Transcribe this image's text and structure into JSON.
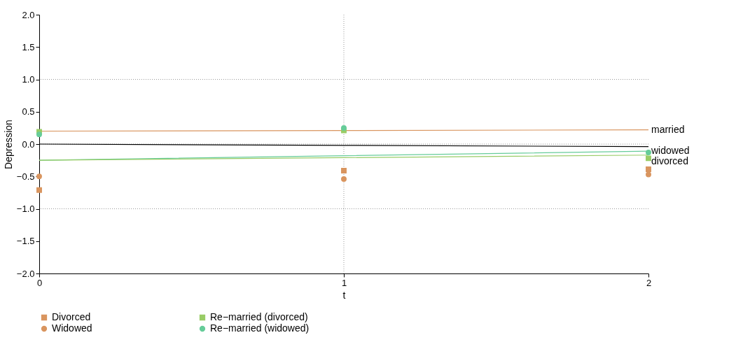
{
  "chart_data": {
    "type": "scatter",
    "xlabel": "t",
    "ylabel": "Depression",
    "x": [
      0,
      1,
      2
    ],
    "xlim": [
      0,
      2
    ],
    "xticks": [
      0,
      1,
      2
    ],
    "ylim": [
      -2,
      2
    ],
    "yticks": [
      {
        "value": -2,
        "label": "−2.0"
      },
      {
        "value": -1.5,
        "label": "−1.5"
      },
      {
        "value": -1,
        "label": "−1.0"
      },
      {
        "value": -0.5,
        "label": "−0.5"
      },
      {
        "value": 0,
        "label": "0.0"
      },
      {
        "value": 0.5,
        "label": "0.5"
      },
      {
        "value": 1,
        "label": "1.0"
      },
      {
        "value": 1.5,
        "label": "1.5"
      },
      {
        "value": 2,
        "label": "2.0"
      }
    ],
    "series": [
      {
        "name": "Divorced",
        "color": "#d9955f",
        "marker": "square",
        "values": [
          -0.71,
          -0.41,
          -0.39
        ]
      },
      {
        "name": "Widowed",
        "color": "#d9955f",
        "marker": "circle",
        "values": [
          -0.5,
          -0.54,
          -0.47
        ]
      },
      {
        "name": "Re−married (divorced)",
        "color": "#99cc66",
        "marker": "square",
        "values": [
          0.19,
          0.21,
          -0.22
        ]
      },
      {
        "name": "Re−married (widowed)",
        "color": "#66cc99",
        "marker": "circle",
        "values": [
          0.15,
          0.25,
          -0.13
        ]
      },
      {
        "name": "married",
        "type": "line",
        "color": "#d9955f",
        "values": [
          0.2,
          0.21,
          0.22
        ]
      },
      {
        "type": "line",
        "color": "#000000",
        "values": [
          0.0,
          -0.02,
          -0.04
        ]
      },
      {
        "name": "widowed",
        "type": "line",
        "color": "#66cc99",
        "values": [
          -0.25,
          -0.18,
          -0.11
        ]
      },
      {
        "name": "divorced",
        "type": "line",
        "color": "#99cc66",
        "values": [
          -0.25,
          -0.21,
          -0.17
        ]
      }
    ],
    "ref_lines": [
      {
        "axis": "y",
        "value": 1,
        "color": "#999999",
        "line_style": "dotted"
      },
      {
        "axis": "y",
        "value": 0,
        "color": "#999999",
        "line_style": "dotted"
      },
      {
        "axis": "y",
        "value": -1,
        "color": "#999999",
        "line_style": "dotted"
      },
      {
        "axis": "x",
        "value": 1,
        "color": "#999999",
        "line_style": "dotted"
      }
    ],
    "legend": "bottom",
    "grid": false
  }
}
